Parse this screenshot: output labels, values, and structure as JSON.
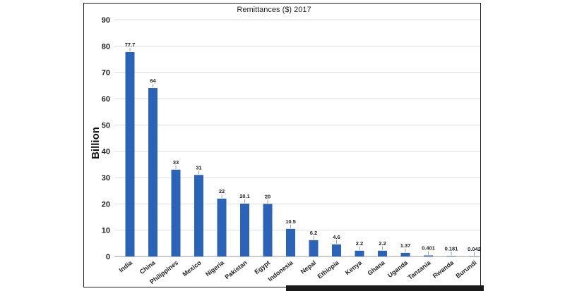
{
  "chart_data": {
    "type": "bar",
    "title": "Remittances ($) 2017",
    "ylabel": "Billion",
    "xlabel": "",
    "ylim": [
      0,
      90
    ],
    "yticks": [
      0,
      10,
      20,
      30,
      40,
      50,
      60,
      70,
      80,
      90
    ],
    "grid": true,
    "bar_color": "#2a63b8",
    "categories": [
      "India",
      "China",
      "Philippines",
      "Mexico",
      "Nigeria",
      "Pakistan",
      "Egypt",
      "Indonesia",
      "Nepal",
      "Ethiopia",
      "Kenya",
      "Ghana",
      "Uganda",
      "Tanzania",
      "Rwanda",
      "Burundi"
    ],
    "values": [
      77.7,
      64,
      33,
      31,
      22,
      20.1,
      20,
      10.5,
      6.2,
      4.6,
      2.2,
      2.2,
      1.37,
      0.401,
      0.181,
      0.042
    ],
    "data_labels": [
      "77.7",
      "64",
      "33",
      "31",
      "22",
      "20.1",
      "20",
      "10.5",
      "6.2",
      "4.6",
      "2.2",
      "2.2",
      "1.37",
      "0.401",
      "0.181",
      "0.042"
    ]
  }
}
